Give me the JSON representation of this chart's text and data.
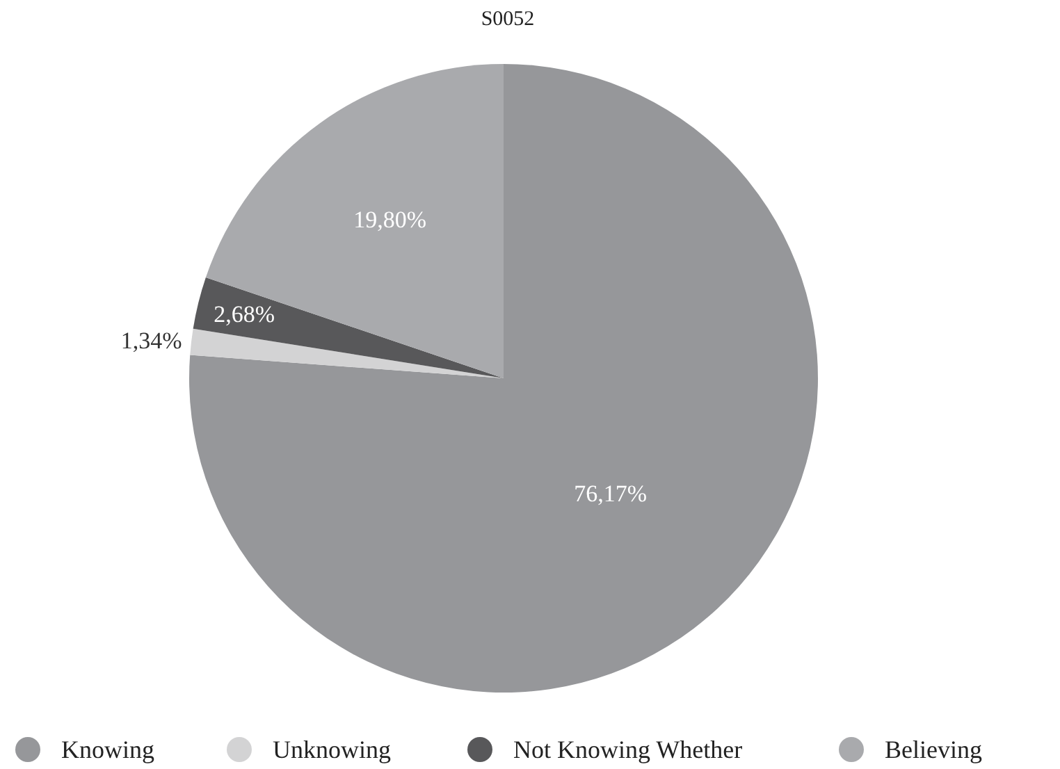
{
  "chart_data": {
    "type": "pie",
    "title": "S0052",
    "categories": [
      "Knowing",
      "Unknowing",
      "Not Knowing Whether",
      "Believing"
    ],
    "values": [
      76.17,
      1.34,
      2.68,
      19.8
    ],
    "colors": [
      "#96979a",
      "#d3d3d4",
      "#58585a",
      "#a9aaad"
    ],
    "value_labels": [
      "76,17%",
      "1,34%",
      "2,68%",
      "19,80%"
    ],
    "legend": "bottom"
  }
}
